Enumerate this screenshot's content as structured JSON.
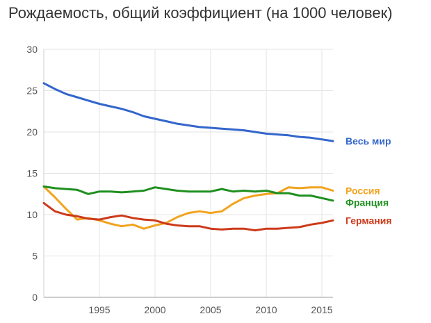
{
  "title": "Рождаемость, общий коэффициент (на 1000 человек)",
  "chart_data": {
    "type": "line",
    "title": "Рождаемость, общий коэффициент (на 1000 человек)",
    "xlabel": "",
    "ylabel": "",
    "xlim": [
      1990,
      2016
    ],
    "ylim": [
      0,
      30
    ],
    "x_ticks": [
      1995,
      2000,
      2005,
      2010,
      2015
    ],
    "y_ticks": [
      0,
      5,
      10,
      15,
      20,
      25,
      30
    ],
    "grid": true,
    "legend": "right, at line ends",
    "x": [
      1990,
      1991,
      1992,
      1993,
      1994,
      1995,
      1996,
      1997,
      1998,
      1999,
      2000,
      2001,
      2002,
      2003,
      2004,
      2005,
      2006,
      2007,
      2008,
      2009,
      2010,
      2011,
      2012,
      2013,
      2014,
      2015,
      2016
    ],
    "series": [
      {
        "name": "Весь мир",
        "color": "#3366cc",
        "values": [
          25.9,
          25.2,
          24.6,
          24.2,
          23.8,
          23.4,
          23.1,
          22.8,
          22.4,
          21.9,
          21.6,
          21.3,
          21.0,
          20.8,
          20.6,
          20.5,
          20.4,
          20.3,
          20.2,
          20.0,
          19.8,
          19.7,
          19.6,
          19.4,
          19.3,
          19.1,
          18.9
        ]
      },
      {
        "name": "Россия",
        "color": "#f2a31e",
        "values": [
          13.4,
          12.1,
          10.7,
          9.4,
          9.6,
          9.3,
          8.9,
          8.6,
          8.8,
          8.3,
          8.7,
          9.0,
          9.7,
          10.2,
          10.4,
          10.2,
          10.4,
          11.3,
          12.0,
          12.3,
          12.5,
          12.6,
          13.3,
          13.2,
          13.3,
          13.3,
          12.9
        ]
      },
      {
        "name": "Франция",
        "color": "#1f8f1f",
        "values": [
          13.4,
          13.2,
          13.1,
          13.0,
          12.5,
          12.8,
          12.8,
          12.7,
          12.8,
          12.9,
          13.3,
          13.1,
          12.9,
          12.8,
          12.8,
          12.8,
          13.1,
          12.8,
          12.9,
          12.8,
          12.9,
          12.6,
          12.6,
          12.3,
          12.3,
          12.0,
          11.7
        ]
      },
      {
        "name": "Германия",
        "color": "#cc3a1a",
        "values": [
          11.4,
          10.4,
          10.0,
          9.8,
          9.5,
          9.4,
          9.7,
          9.9,
          9.6,
          9.4,
          9.3,
          8.9,
          8.7,
          8.6,
          8.6,
          8.3,
          8.2,
          8.3,
          8.3,
          8.1,
          8.3,
          8.3,
          8.4,
          8.5,
          8.8,
          9.0,
          9.3
        ]
      }
    ]
  }
}
